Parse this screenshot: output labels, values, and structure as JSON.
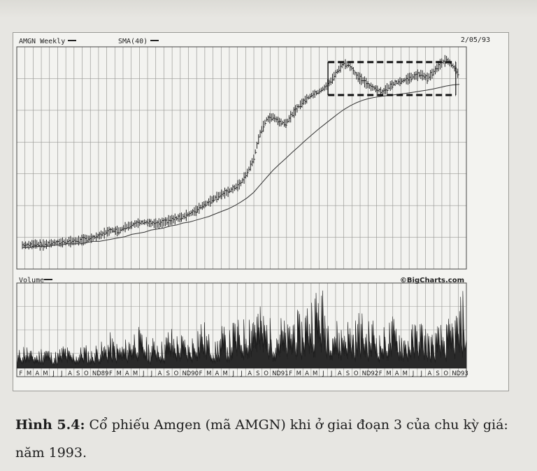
{
  "caption": {
    "label": "Hình 5.4:",
    "text": " Cổ phiếu Amgen (mã AMGN) khi ở giai đoạn 3 của chu kỳ giá: năm 1993."
  },
  "chart_data": [
    {
      "type": "line",
      "panel": "price",
      "title": "AMGN Weekly",
      "indicator": "SMA(40)",
      "date": "2/05/93",
      "yscale": "log",
      "series": [
        {
          "name": "AMGN Weekly",
          "values": [
            0.62,
            0.62,
            0.63,
            0.62,
            0.63,
            0.64,
            0.64,
            0.65,
            0.65,
            0.66,
            0.67,
            0.68,
            0.7,
            0.73,
            0.75,
            0.74,
            0.78,
            0.8,
            0.82,
            0.83,
            0.82,
            0.81,
            0.83,
            0.85,
            0.87,
            0.89,
            0.92,
            0.96,
            1.02,
            1.07,
            1.13,
            1.18,
            1.22,
            1.28,
            1.36,
            1.55,
            1.85,
            2.55,
            3.05,
            3.15,
            2.95,
            2.9,
            3.25,
            3.6,
            3.9,
            4.15,
            4.3,
            4.55,
            4.95,
            5.6,
            6.2,
            6.0,
            5.3,
            5.0,
            4.65,
            4.5,
            4.3,
            4.6,
            4.85,
            4.95,
            5.1,
            5.3,
            5.4,
            5.15,
            5.55,
            6.15,
            6.5,
            6.0,
            5.3
          ]
        },
        {
          "name": "SMA(40)",
          "values": [
            0.6,
            0.6,
            0.61,
            0.61,
            0.61,
            0.62,
            0.62,
            0.63,
            0.63,
            0.63,
            0.64,
            0.65,
            0.65,
            0.66,
            0.67,
            0.68,
            0.69,
            0.71,
            0.72,
            0.73,
            0.75,
            0.76,
            0.77,
            0.79,
            0.8,
            0.82,
            0.83,
            0.85,
            0.87,
            0.89,
            0.92,
            0.95,
            0.98,
            1.02,
            1.07,
            1.13,
            1.21,
            1.33,
            1.46,
            1.6,
            1.73,
            1.86,
            2.01,
            2.16,
            2.33,
            2.5,
            2.68,
            2.86,
            3.05,
            3.25,
            3.45,
            3.62,
            3.77,
            3.89,
            3.98,
            4.04,
            4.09,
            4.13,
            4.17,
            4.21,
            4.26,
            4.31,
            4.37,
            4.42,
            4.49,
            4.57,
            4.66,
            4.72,
            4.75
          ]
        }
      ],
      "box": {
        "from_index": 48,
        "to_index": 67,
        "high": 6.3,
        "low": 4.15
      }
    },
    {
      "type": "bar",
      "panel": "volume",
      "title": "Volume",
      "watermark": "©BigCharts.com",
      "tick_labels": [
        "F",
        "M",
        "A",
        "M",
        "J",
        "J",
        "A",
        "S",
        "O",
        "N",
        "D89",
        "F",
        "M",
        "A",
        "M",
        "J",
        "J",
        "A",
        "S",
        "O",
        "N",
        "D90",
        "F",
        "M",
        "A",
        "M",
        "J",
        "J",
        "A",
        "S",
        "O",
        "N",
        "D91",
        "F",
        "M",
        "A",
        "M",
        "J",
        "J",
        "A",
        "S",
        "O",
        "N",
        "D92",
        "F",
        "M",
        "A",
        "M",
        "J",
        "J",
        "A",
        "S",
        "O",
        "N",
        "D93"
      ],
      "series": [
        {
          "name": "Volume",
          "values": [
            2,
            3,
            2,
            2,
            3,
            2,
            2,
            3,
            2,
            2,
            3,
            2,
            3,
            3,
            4,
            3,
            3,
            4,
            5,
            4,
            3,
            4,
            3,
            5,
            4,
            4,
            3,
            5,
            6,
            4,
            3,
            5,
            4,
            6,
            5,
            7,
            8,
            7,
            6,
            5,
            6,
            5,
            7,
            6,
            8,
            9,
            10,
            7,
            6,
            5,
            6,
            5,
            7,
            5,
            6,
            4,
            5,
            6,
            5,
            4,
            5,
            6,
            5,
            4,
            5,
            5,
            6,
            7,
            10
          ]
        }
      ]
    }
  ]
}
